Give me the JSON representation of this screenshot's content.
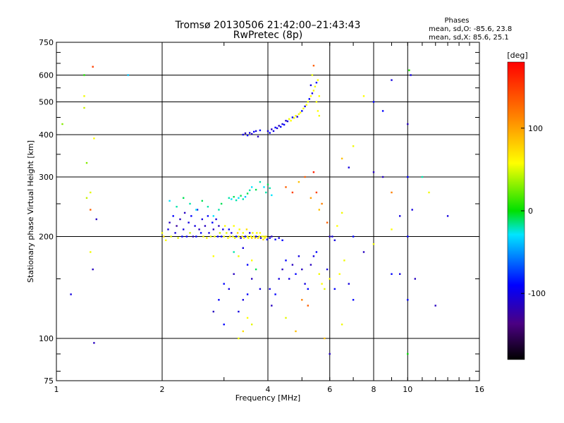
{
  "chart_data": {
    "type": "scatter",
    "title": "Tromsø 20130506 21:42:00–21:43:43",
    "subtitle": "RwPretec (8p)",
    "xlabel": "Frequency [MHz]",
    "ylabel": "Stationary phase Virtual Height [km]",
    "x_scale": "log",
    "y_scale": "log",
    "xlim": [
      1,
      16
    ],
    "ylim": [
      75,
      750
    ],
    "x_ticks": [
      1,
      2,
      4,
      6,
      8,
      10,
      16
    ],
    "x_tick_labels": [
      "1",
      "2",
      "4",
      "6",
      "8",
      "10",
      "16"
    ],
    "y_ticks": [
      75,
      100,
      200,
      300,
      400,
      500,
      600,
      750
    ],
    "y_tick_labels": [
      "75",
      "100",
      "200",
      "300",
      "400",
      "500",
      "600",
      "750"
    ],
    "grid": true,
    "phases_box": {
      "heading": "Phases",
      "line_o": "mean, sd,O: -85.6, 23.8",
      "line_x": "mean, sd,X:  85.6, 25.1"
    },
    "colorbar": {
      "label": "[deg]",
      "range": [
        -180,
        180
      ],
      "ticks": [
        100,
        0,
        -100
      ],
      "tick_labels": [
        "100",
        "0",
        "-100"
      ]
    },
    "note": "points: [frequency MHz, virtual height km, phase deg]",
    "points": [
      [
        1.04,
        430,
        40
      ],
      [
        1.2,
        600,
        10
      ],
      [
        1.2,
        520,
        90
      ],
      [
        1.2,
        480,
        60
      ],
      [
        1.22,
        330,
        40
      ],
      [
        1.22,
        260,
        60
      ],
      [
        1.25,
        180,
        90
      ],
      [
        1.27,
        635,
        160
      ],
      [
        1.28,
        390,
        100
      ],
      [
        1.25,
        240,
        150
      ],
      [
        1.27,
        160,
        -120
      ],
      [
        1.3,
        225,
        -120
      ],
      [
        1.28,
        97,
        -120
      ],
      [
        1.1,
        135,
        -110
      ],
      [
        1.25,
        270,
        80
      ],
      [
        1.6,
        600,
        -40
      ],
      [
        2.0,
        205,
        90
      ],
      [
        2.02,
        200,
        110
      ],
      [
        2.05,
        195,
        100
      ],
      [
        2.08,
        210,
        -110
      ],
      [
        2.1,
        220,
        -120
      ],
      [
        2.12,
        200,
        80
      ],
      [
        2.15,
        230,
        -100
      ],
      [
        2.18,
        205,
        -110
      ],
      [
        2.2,
        215,
        -130
      ],
      [
        2.22,
        198,
        80
      ],
      [
        2.25,
        225,
        -120
      ],
      [
        2.28,
        200,
        -100
      ],
      [
        2.3,
        210,
        -110
      ],
      [
        2.32,
        235,
        -120
      ],
      [
        2.35,
        200,
        -100
      ],
      [
        2.38,
        220,
        -110
      ],
      [
        2.4,
        205,
        60
      ],
      [
        2.42,
        230,
        -100
      ],
      [
        2.45,
        200,
        -120
      ],
      [
        2.48,
        215,
        -110
      ],
      [
        2.5,
        200,
        -100
      ],
      [
        2.52,
        240,
        -110
      ],
      [
        2.55,
        210,
        -120
      ],
      [
        2.58,
        205,
        -100
      ],
      [
        2.6,
        225,
        -110
      ],
      [
        2.62,
        200,
        80
      ],
      [
        2.65,
        215,
        -120
      ],
      [
        2.68,
        198,
        100
      ],
      [
        2.7,
        230,
        -100
      ],
      [
        2.72,
        205,
        -110
      ],
      [
        2.75,
        200,
        80
      ],
      [
        2.78,
        220,
        -100
      ],
      [
        2.8,
        210,
        -120
      ],
      [
        2.82,
        200,
        90
      ],
      [
        2.85,
        225,
        -110
      ],
      [
        2.88,
        200,
        -100
      ],
      [
        2.9,
        215,
        -120
      ],
      [
        2.92,
        205,
        60
      ],
      [
        2.95,
        200,
        -100
      ],
      [
        2.98,
        210,
        -110
      ],
      [
        3.0,
        200,
        90
      ],
      [
        3.02,
        215,
        100
      ],
      [
        3.05,
        205,
        80
      ],
      [
        3.08,
        198,
        100
      ],
      [
        3.1,
        210,
        -100
      ],
      [
        3.12,
        200,
        110
      ],
      [
        3.15,
        205,
        -110
      ],
      [
        3.18,
        200,
        80
      ],
      [
        3.2,
        215,
        100
      ],
      [
        3.22,
        198,
        90
      ],
      [
        3.25,
        200,
        -100
      ],
      [
        3.28,
        205,
        110
      ],
      [
        3.3,
        200,
        90
      ],
      [
        3.32,
        210,
        100
      ],
      [
        3.35,
        198,
        -110
      ],
      [
        3.38,
        200,
        110
      ],
      [
        3.4,
        205,
        90
      ],
      [
        3.42,
        198,
        100
      ],
      [
        3.45,
        200,
        -100
      ],
      [
        3.48,
        210,
        110
      ],
      [
        3.5,
        200,
        100
      ],
      [
        3.52,
        198,
        90
      ],
      [
        3.55,
        205,
        -110
      ],
      [
        3.58,
        200,
        100
      ],
      [
        3.6,
        198,
        110
      ],
      [
        3.62,
        205,
        90
      ],
      [
        3.65,
        200,
        100
      ],
      [
        3.68,
        198,
        110
      ],
      [
        3.7,
        200,
        -100
      ],
      [
        3.72,
        205,
        100
      ],
      [
        3.75,
        198,
        110
      ],
      [
        3.78,
        200,
        90
      ],
      [
        3.8,
        205,
        100
      ],
      [
        3.82,
        198,
        -110
      ],
      [
        3.85,
        200,
        100
      ],
      [
        3.88,
        196,
        110
      ],
      [
        3.9,
        200,
        90
      ],
      [
        3.92,
        198,
        100
      ],
      [
        3.95,
        200,
        110
      ],
      [
        3.98,
        196,
        -100
      ],
      [
        4.05,
        198,
        -110
      ],
      [
        4.1,
        200,
        -120
      ],
      [
        4.2,
        196,
        -100
      ],
      [
        4.3,
        198,
        -110
      ],
      [
        4.4,
        195,
        -100
      ],
      [
        2.1,
        255,
        -30
      ],
      [
        2.2,
        245,
        -20
      ],
      [
        2.3,
        260,
        -10
      ],
      [
        2.4,
        250,
        -20
      ],
      [
        2.5,
        240,
        -30
      ],
      [
        2.6,
        255,
        -10
      ],
      [
        2.7,
        245,
        -20
      ],
      [
        2.8,
        230,
        -30
      ],
      [
        2.9,
        240,
        -20
      ],
      [
        2.95,
        250,
        -10
      ],
      [
        3.1,
        260,
        -20
      ],
      [
        3.15,
        258,
        -30
      ],
      [
        3.2,
        262,
        -10
      ],
      [
        3.25,
        256,
        -20
      ],
      [
        3.3,
        260,
        -30
      ],
      [
        3.35,
        264,
        -10
      ],
      [
        3.4,
        258,
        -20
      ],
      [
        3.45,
        262,
        -40
      ],
      [
        3.5,
        268,
        -10
      ],
      [
        3.55,
        274,
        -20
      ],
      [
        3.6,
        280,
        -30
      ],
      [
        3.7,
        275,
        -10
      ],
      [
        3.8,
        290,
        -20
      ],
      [
        3.9,
        280,
        -30
      ],
      [
        3.95,
        270,
        -20
      ],
      [
        4.0,
        285,
        -10
      ],
      [
        4.05,
        278,
        -20
      ],
      [
        4.1,
        265,
        -30
      ],
      [
        3.4,
        400,
        -110
      ],
      [
        3.45,
        404,
        -120
      ],
      [
        3.5,
        398,
        -100
      ],
      [
        3.55,
        405,
        -110
      ],
      [
        3.6,
        402,
        -120
      ],
      [
        3.65,
        408,
        -100
      ],
      [
        3.7,
        410,
        -110
      ],
      [
        3.75,
        395,
        -120
      ],
      [
        3.8,
        412,
        -100
      ],
      [
        4.0,
        410,
        -110
      ],
      [
        4.05,
        405,
        -100
      ],
      [
        4.1,
        415,
        -120
      ],
      [
        4.15,
        410,
        -110
      ],
      [
        4.2,
        420,
        -100
      ],
      [
        4.25,
        418,
        -110
      ],
      [
        4.3,
        425,
        -120
      ],
      [
        4.35,
        422,
        -100
      ],
      [
        4.4,
        430,
        -110
      ],
      [
        4.45,
        428,
        -100
      ],
      [
        4.5,
        440,
        -120
      ],
      [
        4.55,
        438,
        -110
      ],
      [
        4.6,
        445,
        90
      ],
      [
        4.65,
        440,
        100
      ],
      [
        4.7,
        450,
        -100
      ],
      [
        4.75,
        448,
        90
      ],
      [
        4.8,
        455,
        100
      ],
      [
        4.85,
        452,
        -110
      ],
      [
        4.9,
        460,
        90
      ],
      [
        4.95,
        465,
        100
      ],
      [
        5.0,
        470,
        -100
      ],
      [
        5.05,
        478,
        90
      ],
      [
        5.1,
        485,
        -110
      ],
      [
        5.15,
        490,
        100
      ],
      [
        5.2,
        500,
        90
      ],
      [
        5.25,
        510,
        -100
      ],
      [
        5.3,
        520,
        100
      ],
      [
        5.35,
        530,
        -110
      ],
      [
        5.4,
        540,
        100
      ],
      [
        5.45,
        555,
        90
      ],
      [
        5.5,
        570,
        -100
      ],
      [
        5.55,
        580,
        100
      ],
      [
        5.3,
        560,
        -110
      ],
      [
        5.35,
        600,
        80
      ],
      [
        5.4,
        640,
        150
      ],
      [
        5.5,
        500,
        90
      ],
      [
        5.55,
        470,
        100
      ],
      [
        5.6,
        455,
        90
      ],
      [
        5.6,
        520,
        100
      ],
      [
        3.4,
        130,
        -110
      ],
      [
        3.5,
        135,
        -100
      ],
      [
        3.6,
        150,
        -120
      ],
      [
        3.7,
        160,
        -10
      ],
      [
        3.8,
        140,
        -110
      ],
      [
        3.5,
        165,
        -100
      ],
      [
        3.6,
        170,
        100
      ],
      [
        3.3,
        175,
        90
      ],
      [
        3.2,
        180,
        -20
      ],
      [
        3.4,
        185,
        -110
      ],
      [
        3.0,
        145,
        -100
      ],
      [
        3.1,
        140,
        -110
      ],
      [
        3.2,
        155,
        -120
      ],
      [
        2.9,
        130,
        -100
      ],
      [
        2.8,
        175,
        100
      ],
      [
        3.3,
        120,
        -110
      ],
      [
        3.5,
        115,
        100
      ],
      [
        3.6,
        110,
        80
      ],
      [
        3.4,
        105,
        110
      ],
      [
        3.3,
        100,
        90
      ],
      [
        3.0,
        110,
        -100
      ],
      [
        2.8,
        120,
        -120
      ],
      [
        4.05,
        140,
        -110
      ],
      [
        4.1,
        125,
        -120
      ],
      [
        4.2,
        135,
        -100
      ],
      [
        4.3,
        150,
        -110
      ],
      [
        4.4,
        160,
        -120
      ],
      [
        4.5,
        170,
        -100
      ],
      [
        4.6,
        150,
        -110
      ],
      [
        4.7,
        165,
        -120
      ],
      [
        4.8,
        155,
        -100
      ],
      [
        4.9,
        175,
        -110
      ],
      [
        5.0,
        160,
        -120
      ],
      [
        5.1,
        145,
        -110
      ],
      [
        5.2,
        140,
        -100
      ],
      [
        5.3,
        165,
        -120
      ],
      [
        5.4,
        175,
        -110
      ],
      [
        5.5,
        180,
        -100
      ],
      [
        5.6,
        155,
        90
      ],
      [
        5.7,
        145,
        100
      ],
      [
        5.8,
        140,
        80
      ],
      [
        5.9,
        160,
        -110
      ],
      [
        6.0,
        150,
        100
      ],
      [
        6.2,
        140,
        -100
      ],
      [
        6.4,
        155,
        100
      ],
      [
        6.6,
        170,
        90
      ],
      [
        6.8,
        145,
        -110
      ],
      [
        7.0,
        130,
        -100
      ],
      [
        6.5,
        110,
        90
      ],
      [
        6.0,
        90,
        -120
      ],
      [
        5.8,
        100,
        120
      ],
      [
        4.5,
        115,
        80
      ],
      [
        4.8,
        105,
        120
      ],
      [
        5.2,
        125,
        150
      ],
      [
        5.0,
        130,
        140
      ],
      [
        4.5,
        280,
        150
      ],
      [
        4.7,
        270,
        160
      ],
      [
        4.9,
        290,
        120
      ],
      [
        5.1,
        300,
        150
      ],
      [
        5.3,
        260,
        130
      ],
      [
        5.5,
        270,
        160
      ],
      [
        5.7,
        250,
        140
      ],
      [
        5.4,
        310,
        170
      ],
      [
        5.6,
        240,
        120
      ],
      [
        5.9,
        220,
        150
      ],
      [
        6.1,
        200,
        -110
      ],
      [
        6.3,
        215,
        100
      ],
      [
        6.5,
        235,
        90
      ],
      [
        7.0,
        200,
        -100
      ],
      [
        7.5,
        180,
        -120
      ],
      [
        8.0,
        190,
        90
      ],
      [
        9.0,
        210,
        100
      ],
      [
        9.5,
        230,
        -110
      ],
      [
        10.0,
        200,
        -100
      ],
      [
        10.2,
        600,
        -110
      ],
      [
        10.1,
        620,
        10
      ],
      [
        10.0,
        430,
        -120
      ],
      [
        10.0,
        300,
        -100
      ],
      [
        10.3,
        240,
        -110
      ],
      [
        10.5,
        150,
        -120
      ],
      [
        10.0,
        130,
        -100
      ],
      [
        11.0,
        300,
        -20
      ],
      [
        11.5,
        270,
        90
      ],
      [
        13.0,
        230,
        -110
      ],
      [
        12.0,
        125,
        -120
      ],
      [
        9.0,
        155,
        -100
      ],
      [
        9.5,
        155,
        -110
      ],
      [
        10.0,
        90,
        0
      ],
      [
        8.0,
        500,
        -100
      ],
      [
        9.0,
        580,
        -110
      ],
      [
        8.5,
        300,
        -120
      ],
      [
        8.5,
        470,
        -100
      ],
      [
        9.0,
        270,
        140
      ],
      [
        7.5,
        520,
        100
      ],
      [
        6.5,
        340,
        120
      ],
      [
        7.0,
        370,
        90
      ],
      [
        6.8,
        320,
        -110
      ],
      [
        8.0,
        310,
        -120
      ],
      [
        6.0,
        200,
        -120
      ],
      [
        6.2,
        195,
        -110
      ]
    ]
  }
}
